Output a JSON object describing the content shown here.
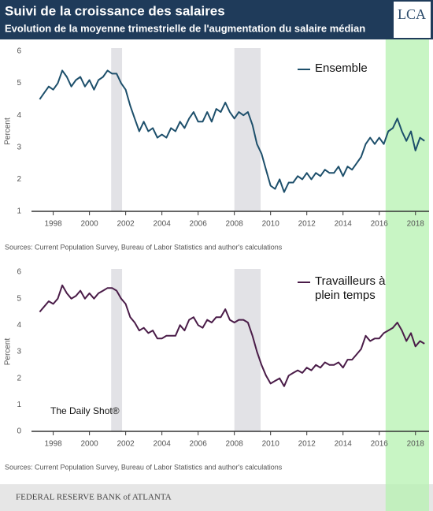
{
  "header": {
    "title": "Suivi de la croissance des salaires",
    "subtitle": "Evolution de la moyenne trimestrielle de l'augmentation du salaire médian",
    "logo": "LCA"
  },
  "watermark": "The Daily Shot®",
  "footer": "FEDERAL RESERVE BANK of ATLANTA",
  "chart_data": [
    {
      "type": "line",
      "ylabel": "Percent",
      "source": "Sources: Current Population Survey, Bureau of Labor Statistics and author's calculations",
      "xlim": [
        1996.8,
        2018.75
      ],
      "xticks": [
        1998,
        2000,
        2002,
        2004,
        2006,
        2008,
        2010,
        2012,
        2014,
        2016,
        2018
      ],
      "ylim": [
        1,
        6
      ],
      "yticks": [
        1,
        2,
        3,
        4,
        5,
        6
      ],
      "grid": false,
      "legend": "upper right",
      "recessions": [
        [
          2001.2,
          2001.8
        ],
        [
          2008,
          2009.45
        ]
      ],
      "highlight": [
        2016.35,
        2018.75
      ],
      "x": [
        1997.25,
        1997.5,
        1997.75,
        1998,
        1998.25,
        1998.5,
        1998.75,
        1999,
        1999.25,
        1999.5,
        1999.75,
        2000,
        2000.25,
        2000.5,
        2000.75,
        2001,
        2001.25,
        2001.5,
        2001.75,
        2002,
        2002.25,
        2002.5,
        2002.75,
        2003,
        2003.25,
        2003.5,
        2003.75,
        2004,
        2004.25,
        2004.5,
        2004.75,
        2005,
        2005.25,
        2005.5,
        2005.75,
        2006,
        2006.25,
        2006.5,
        2006.75,
        2007,
        2007.25,
        2007.5,
        2007.75,
        2008,
        2008.25,
        2008.5,
        2008.75,
        2009,
        2009.25,
        2009.5,
        2009.75,
        2010,
        2010.25,
        2010.5,
        2010.75,
        2011,
        2011.25,
        2011.5,
        2011.75,
        2012,
        2012.25,
        2012.5,
        2012.75,
        2013,
        2013.25,
        2013.5,
        2013.75,
        2014,
        2014.25,
        2014.5,
        2014.75,
        2015,
        2015.25,
        2015.5,
        2015.75,
        2016,
        2016.25,
        2016.5,
        2016.75,
        2017,
        2017.25,
        2017.5,
        2017.75,
        2018,
        2018.25,
        2018.5
      ],
      "series": [
        {
          "name": "Ensemble",
          "color": "#1d4f6b",
          "values": [
            4.5,
            4.7,
            4.9,
            4.8,
            5.0,
            5.4,
            5.2,
            4.9,
            5.1,
            5.2,
            4.9,
            5.1,
            4.8,
            5.1,
            5.2,
            5.4,
            5.3,
            5.3,
            5.0,
            4.8,
            4.3,
            3.9,
            3.5,
            3.8,
            3.5,
            3.6,
            3.3,
            3.4,
            3.3,
            3.6,
            3.5,
            3.8,
            3.6,
            3.9,
            4.1,
            3.8,
            3.8,
            4.1,
            3.8,
            4.2,
            4.1,
            4.4,
            4.1,
            3.9,
            4.1,
            4.0,
            4.1,
            3.7,
            3.1,
            2.8,
            2.3,
            1.8,
            1.7,
            2.0,
            1.6,
            1.9,
            1.9,
            2.1,
            2.0,
            2.2,
            2.0,
            2.2,
            2.1,
            2.3,
            2.2,
            2.2,
            2.4,
            2.1,
            2.4,
            2.3,
            2.5,
            2.7,
            3.1,
            3.3,
            3.1,
            3.3,
            3.1,
            3.5,
            3.6,
            3.9,
            3.5,
            3.2,
            3.5,
            2.9,
            3.3,
            3.2
          ]
        }
      ]
    },
    {
      "type": "line",
      "ylabel": "Percent",
      "source": "Sources: Current Population Survey, Bureau of Labor Statistics and author's calculations",
      "xlim": [
        1996.8,
        2018.75
      ],
      "xticks": [
        1998,
        2000,
        2002,
        2004,
        2006,
        2008,
        2010,
        2012,
        2014,
        2016,
        2018
      ],
      "ylim": [
        0,
        6
      ],
      "yticks": [
        0,
        1,
        2,
        3,
        4,
        5,
        6
      ],
      "grid": false,
      "legend": "upper right",
      "recessions": [
        [
          2001.2,
          2001.8
        ],
        [
          2008,
          2009.45
        ]
      ],
      "x": [
        1997.25,
        1997.5,
        1997.75,
        1998,
        1998.25,
        1998.5,
        1998.75,
        1999,
        1999.25,
        1999.5,
        1999.75,
        2000,
        2000.25,
        2000.5,
        2000.75,
        2001,
        2001.25,
        2001.5,
        2001.75,
        2002,
        2002.25,
        2002.5,
        2002.75,
        2003,
        2003.25,
        2003.5,
        2003.75,
        2004,
        2004.25,
        2004.5,
        2004.75,
        2005,
        2005.25,
        2005.5,
        2005.75,
        2006,
        2006.25,
        2006.5,
        2006.75,
        2007,
        2007.25,
        2007.5,
        2007.75,
        2008,
        2008.25,
        2008.5,
        2008.75,
        2009,
        2009.25,
        2009.5,
        2009.75,
        2010,
        2010.25,
        2010.5,
        2010.75,
        2011,
        2011.25,
        2011.5,
        2011.75,
        2012,
        2012.25,
        2012.5,
        2012.75,
        2013,
        2013.25,
        2013.5,
        2013.75,
        2014,
        2014.25,
        2014.5,
        2014.75,
        2015,
        2015.25,
        2015.5,
        2015.75,
        2016,
        2016.25,
        2016.5,
        2016.75,
        2017,
        2017.25,
        2017.5,
        2017.75,
        2018,
        2018.25,
        2018.5
      ],
      "series": [
        {
          "name": "Travailleurs à plein temps",
          "color": "#4a1c48",
          "values": [
            4.5,
            4.7,
            4.9,
            4.8,
            5.0,
            5.5,
            5.2,
            5.0,
            5.1,
            5.3,
            5.0,
            5.2,
            5.0,
            5.2,
            5.3,
            5.4,
            5.4,
            5.3,
            5.0,
            4.8,
            4.3,
            4.1,
            3.8,
            3.9,
            3.7,
            3.8,
            3.5,
            3.5,
            3.6,
            3.6,
            3.6,
            4.0,
            3.8,
            4.2,
            4.3,
            4.0,
            3.9,
            4.2,
            4.1,
            4.3,
            4.3,
            4.6,
            4.2,
            4.1,
            4.2,
            4.2,
            4.1,
            3.6,
            3.0,
            2.5,
            2.1,
            1.8,
            1.9,
            2.0,
            1.7,
            2.1,
            2.2,
            2.3,
            2.2,
            2.4,
            2.3,
            2.5,
            2.4,
            2.6,
            2.5,
            2.5,
            2.6,
            2.4,
            2.7,
            2.7,
            2.9,
            3.1,
            3.6,
            3.4,
            3.5,
            3.5,
            3.7,
            3.8,
            3.9,
            4.1,
            3.8,
            3.4,
            3.7,
            3.2,
            3.4,
            3.3
          ]
        }
      ]
    }
  ]
}
